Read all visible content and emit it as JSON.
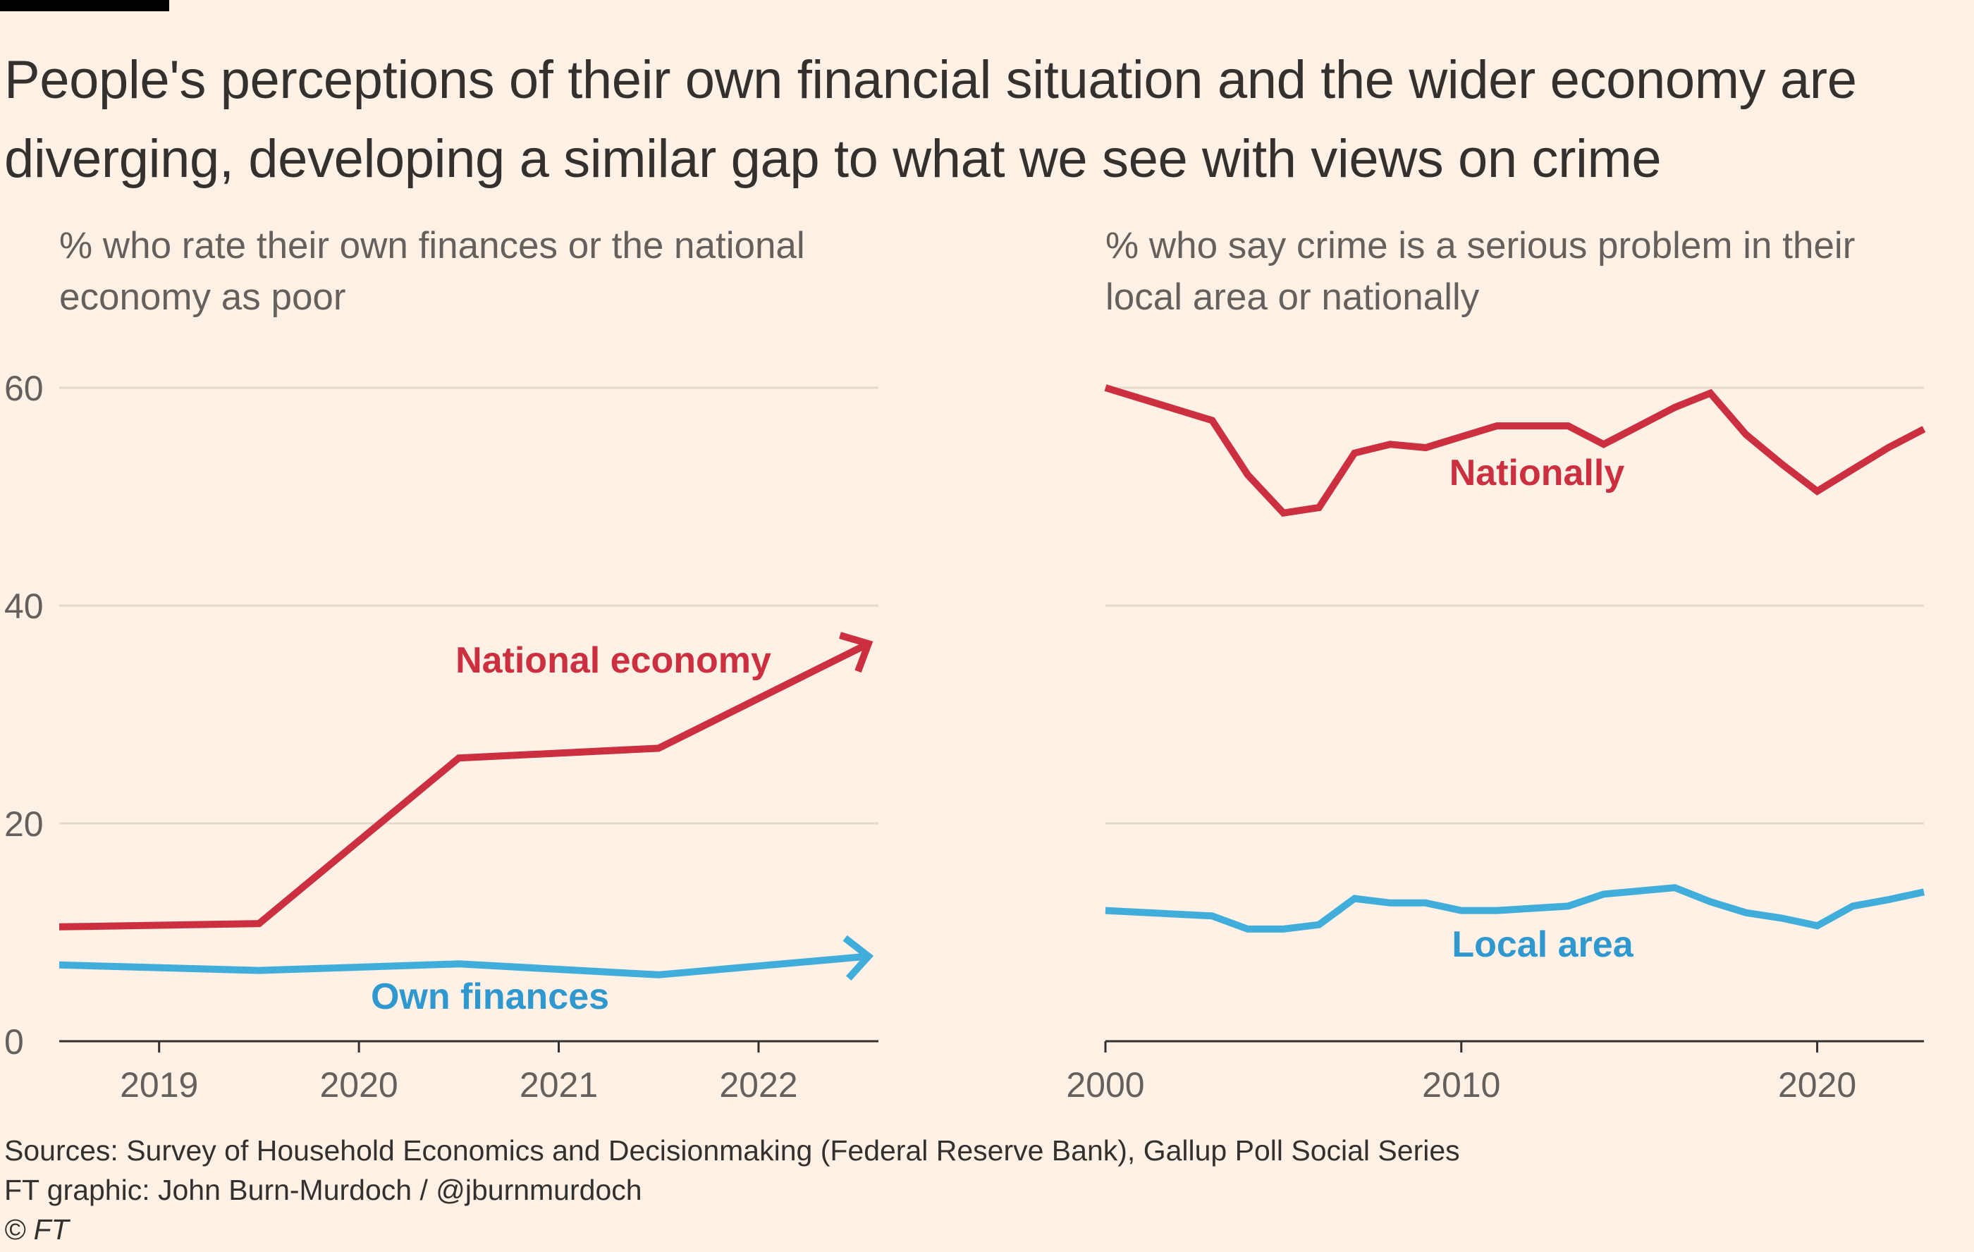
{
  "title": "People's perceptions of their own financial situation and the wider economy are diverging, developing a similar gap to what we see with views on crime",
  "colors": {
    "background": "#FFF1E5",
    "red": "#CC2F3F",
    "blue": "#40ADDA",
    "grid": "#E6D9CE",
    "axis": "#33302E",
    "text": "#33302E",
    "muted_text": "#66605C",
    "red_label": "#CC2F3F",
    "blue_label": "#2E98CF"
  },
  "chart_data": [
    {
      "type": "line",
      "title": "% who rate their own finances or the national economy as poor",
      "xlabel": "",
      "ylabel": "",
      "xlim": [
        2018.5,
        2022.6
      ],
      "ylim": [
        0,
        60
      ],
      "xticks": [
        2019,
        2020,
        2021,
        2022
      ],
      "yticks": [
        0,
        20,
        40,
        60
      ],
      "grid": true,
      "legend": "direct labels on lines",
      "series": [
        {
          "name": "National economy",
          "color": "#CC2F3F",
          "arrow": true,
          "x": [
            2018.5,
            2019.5,
            2020.5,
            2021.5,
            2022.55
          ],
          "y": [
            10.5,
            10.8,
            26,
            26.9,
            36.5
          ]
        },
        {
          "name": "Own finances",
          "color": "#40ADDA",
          "arrow": true,
          "x": [
            2018.5,
            2019.5,
            2020.5,
            2021.5,
            2022.55
          ],
          "y": [
            7,
            6.5,
            7.1,
            6.1,
            7.8
          ]
        }
      ]
    },
    {
      "type": "line",
      "title": "% who say crime is a serious problem in their local area or nationally",
      "xlabel": "",
      "ylabel": "",
      "xlim": [
        2000,
        2023
      ],
      "ylim": [
        0,
        60
      ],
      "xticks": [
        2000,
        2010,
        2020
      ],
      "yticks": [
        0,
        20,
        40,
        60
      ],
      "grid": true,
      "legend": "direct labels on lines",
      "series": [
        {
          "name": "Nationally",
          "color": "#CC2F3F",
          "x": [
            2000,
            2003,
            2004,
            2005,
            2006,
            2007,
            2008,
            2009,
            2010,
            2011,
            2012,
            2013,
            2014,
            2015,
            2016,
            2017,
            2018,
            2019,
            2020,
            2021,
            2022,
            2023
          ],
          "y": [
            60,
            57,
            52,
            48.5,
            49,
            54,
            54.8,
            54.5,
            55.5,
            56.5,
            56.5,
            56.5,
            54.8,
            56.5,
            58.2,
            59.5,
            55.7,
            53,
            50.5,
            52.5,
            54.5,
            56.2
          ]
        },
        {
          "name": "Local area",
          "color": "#40ADDA",
          "x": [
            2000,
            2003,
            2004,
            2005,
            2006,
            2007,
            2008,
            2009,
            2010,
            2011,
            2012,
            2013,
            2014,
            2015,
            2016,
            2017,
            2018,
            2019,
            2020,
            2021,
            2022,
            2023
          ],
          "y": [
            12,
            11.5,
            10.3,
            10.3,
            10.7,
            13.1,
            12.7,
            12.7,
            12,
            12,
            12.2,
            12.4,
            13.5,
            13.8,
            14.1,
            12.8,
            11.8,
            11.3,
            10.6,
            12.4,
            13,
            13.7
          ]
        }
      ]
    }
  ],
  "footer": {
    "sources": "Sources: Survey of Household Economics and Decisionmaking (Federal Reserve Bank), Gallup Poll Social Series",
    "credit": "FT graphic: John Burn-Murdoch / @jburnmurdoch",
    "copyright": "© FT"
  }
}
